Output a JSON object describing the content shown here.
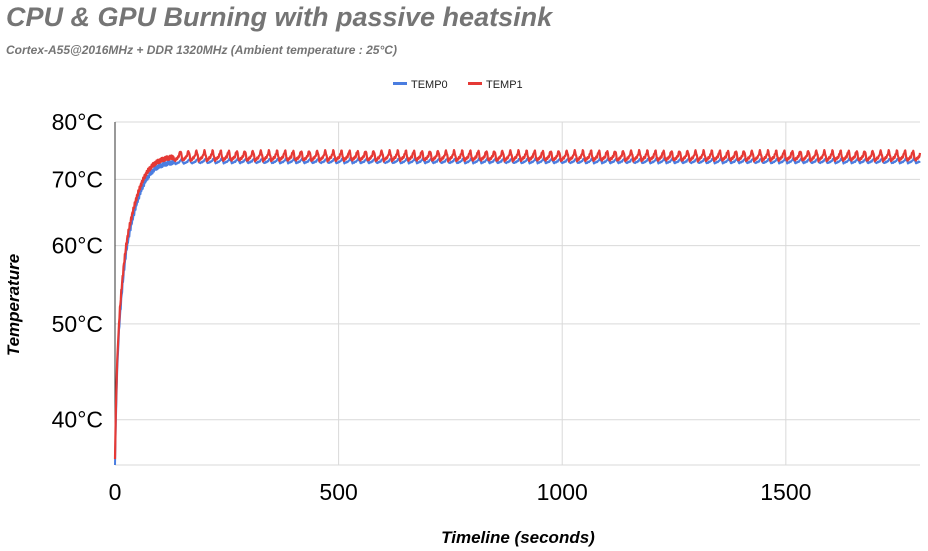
{
  "chart_data": {
    "type": "line",
    "title": "CPU & GPU Burning with passive heatsink",
    "subtitle": "Cortex-A55@2016MHz + DDR 1320MHz (Ambient temperature : 25°C)",
    "xlabel": "Timeline (seconds)",
    "ylabel": "Temperature",
    "xlim": [
      0,
      1800
    ],
    "ylim": [
      36,
      80
    ],
    "y_scale": "log",
    "x_ticks": [
      "0",
      "500",
      "1000",
      "1500"
    ],
    "x_tick_values": [
      0,
      500,
      1000,
      1500
    ],
    "y_ticks": [
      "80°C",
      "70°C",
      "60°C",
      "50°C",
      "40°C"
    ],
    "y_tick_values": [
      80,
      70,
      60,
      50,
      40
    ],
    "grid": true,
    "legend_position": "top",
    "series": [
      {
        "name": "TEMP0",
        "color": "#4a7de0",
        "x": [
          0,
          2,
          5,
          10,
          15,
          20,
          25,
          30,
          40,
          50,
          60,
          70,
          80,
          90,
          100,
          110,
          120,
          130,
          150,
          200,
          300,
          400,
          500,
          600,
          700,
          800,
          900,
          1000,
          1100,
          1200,
          1300,
          1400,
          1500,
          1600,
          1700,
          1800
        ],
        "values": [
          36,
          40,
          45,
          50,
          53.5,
          56.5,
          59,
          61,
          64,
          66.5,
          68.5,
          70,
          71,
          71.8,
          72.2,
          72.5,
          72.7,
          72.8,
          72.9,
          73,
          73,
          73,
          73,
          73,
          73,
          73,
          73,
          73,
          73,
          73,
          73,
          73,
          73,
          73,
          73,
          73
        ]
      },
      {
        "name": "TEMP1",
        "color": "#e53935",
        "x": [
          0,
          2,
          5,
          10,
          15,
          20,
          25,
          30,
          40,
          50,
          60,
          70,
          80,
          90,
          100,
          110,
          120,
          130,
          150,
          200,
          300,
          400,
          500,
          600,
          700,
          800,
          900,
          1000,
          1100,
          1200,
          1300,
          1400,
          1500,
          1600,
          1700,
          1800
        ],
        "values": [
          36.5,
          41,
          46,
          51,
          54.5,
          57.5,
          60,
          62,
          65,
          67.5,
          69.5,
          71,
          72,
          72.7,
          73.1,
          73.4,
          73.6,
          73.7,
          73.8,
          73.8,
          73.8,
          73.8,
          73.8,
          73.8,
          73.8,
          73.8,
          73.8,
          73.8,
          73.8,
          73.8,
          73.8,
          73.8,
          73.8,
          73.8,
          73.8,
          73.8
        ]
      }
    ],
    "oscillation_period_seconds": 18,
    "oscillation_amplitude": [
      0.5,
      1.1
    ]
  }
}
